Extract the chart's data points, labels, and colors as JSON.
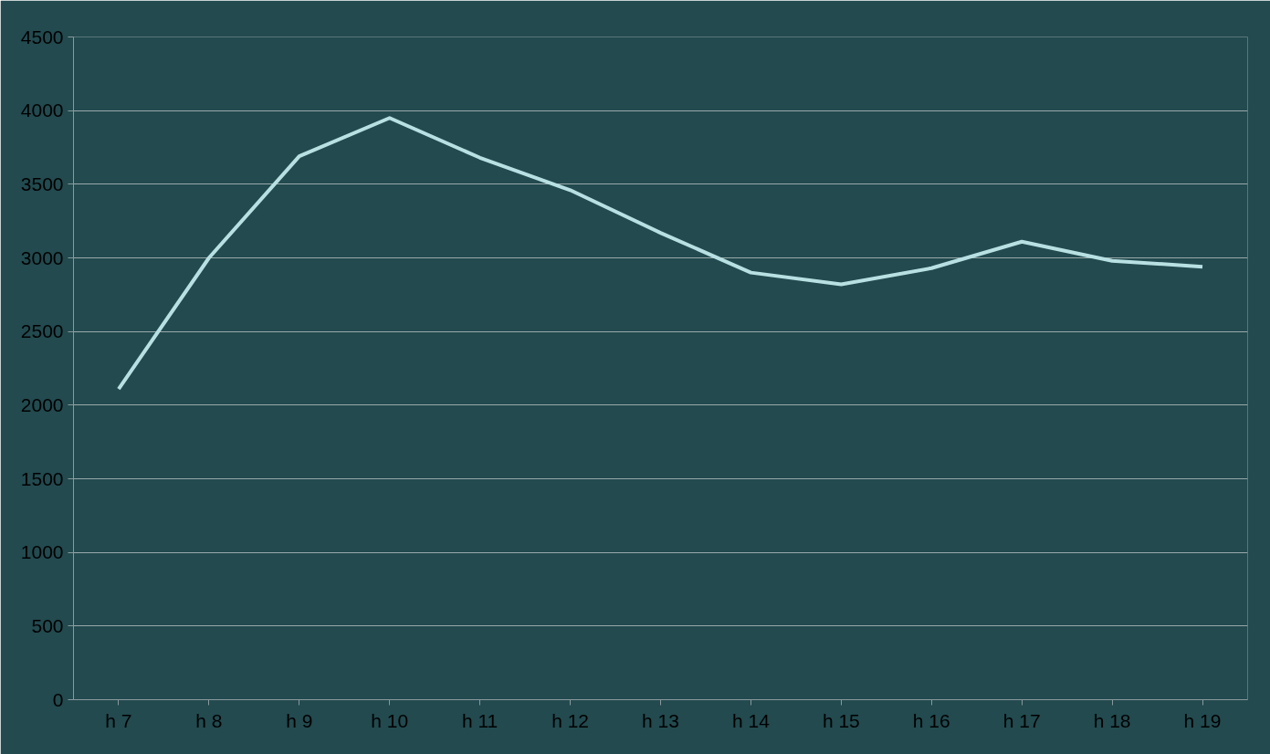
{
  "chart_data": {
    "type": "line",
    "categories": [
      "h 7",
      "h 8",
      "h 9",
      "h 10",
      "h 11",
      "h 12",
      "h 13",
      "h 14",
      "h 15",
      "h 16",
      "h 17",
      "h 18",
      "h 19"
    ],
    "series": [
      {
        "color": "#b8e0e3",
        "values": [
          2110,
          3000,
          3690,
          3950,
          3680,
          3460,
          3170,
          2900,
          2820,
          2930,
          3110,
          2980,
          2940
        ]
      }
    ],
    "ylim": [
      0,
      4500
    ],
    "yticks": [
      0,
      500,
      1000,
      1500,
      2000,
      2500,
      3000,
      3500,
      4000,
      4500
    ],
    "grid": "y",
    "marker": "none",
    "line_style": "solid"
  }
}
